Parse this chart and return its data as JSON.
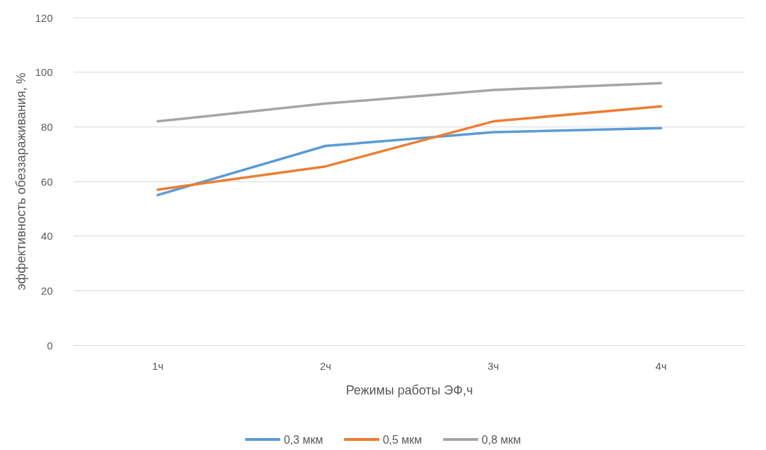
{
  "chart_data": {
    "type": "line",
    "xlabel": "Режимы работы ЭФ,ч",
    "ylabel": "эффективность обеззараживания, %",
    "categories": [
      "1ч",
      "2ч",
      "3ч",
      "4ч"
    ],
    "series": [
      {
        "name": "0,3 мкм",
        "color": "#5b9bd5",
        "values": [
          55,
          73,
          78,
          79.5
        ]
      },
      {
        "name": "0,5 мкм",
        "color": "#ed7d31",
        "values": [
          57,
          65.5,
          82,
          87.5
        ]
      },
      {
        "name": "0,8 мкм",
        "color": "#a5a5a5",
        "values": [
          82,
          88.5,
          93.5,
          96
        ]
      }
    ],
    "ylim": [
      0,
      120
    ],
    "yticks": [
      0,
      20,
      40,
      60,
      80,
      100,
      120
    ],
    "grid": "y",
    "legend": "bottom",
    "marker": "none",
    "line_style": "solid"
  }
}
